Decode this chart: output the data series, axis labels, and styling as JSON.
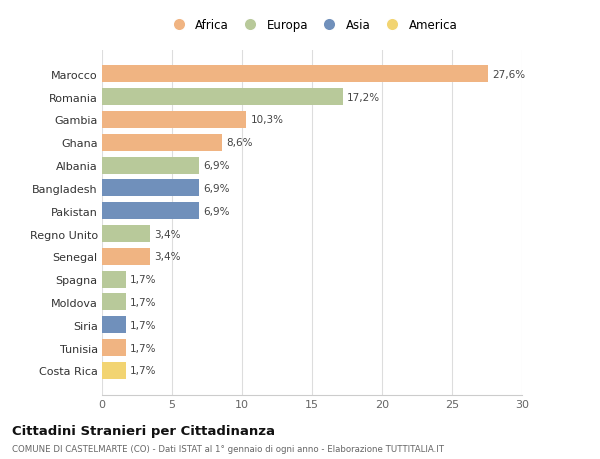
{
  "countries": [
    "Costa Rica",
    "Tunisia",
    "Siria",
    "Moldova",
    "Spagna",
    "Senegal",
    "Regno Unito",
    "Pakistan",
    "Bangladesh",
    "Albania",
    "Ghana",
    "Gambia",
    "Romania",
    "Marocco"
  ],
  "values": [
    1.7,
    1.7,
    1.7,
    1.7,
    1.7,
    3.4,
    3.4,
    6.9,
    6.9,
    6.9,
    8.6,
    10.3,
    17.2,
    27.6
  ],
  "labels": [
    "1,7%",
    "1,7%",
    "1,7%",
    "1,7%",
    "1,7%",
    "3,4%",
    "3,4%",
    "6,9%",
    "6,9%",
    "6,9%",
    "8,6%",
    "10,3%",
    "17,2%",
    "27,6%"
  ],
  "continents": [
    "America",
    "Africa",
    "Asia",
    "Europa",
    "Europa",
    "Africa",
    "Europa",
    "Asia",
    "Asia",
    "Europa",
    "Africa",
    "Africa",
    "Europa",
    "Africa"
  ],
  "continent_colors": {
    "Africa": "#F0B482",
    "Europa": "#B8C99A",
    "Asia": "#7090BB",
    "America": "#F2D472"
  },
  "legend_order": [
    "Africa",
    "Europa",
    "Asia",
    "America"
  ],
  "xlim": [
    0,
    30
  ],
  "xticks": [
    0,
    5,
    10,
    15,
    20,
    25,
    30
  ],
  "title": "Cittadini Stranieri per Cittadinanza",
  "subtitle": "COMUNE DI CASTELMARTE (CO) - Dati ISTAT al 1° gennaio di ogni anno - Elaborazione TUTTITALIA.IT",
  "background_color": "#ffffff",
  "grid_color": "#dddddd",
  "bar_height": 0.75
}
